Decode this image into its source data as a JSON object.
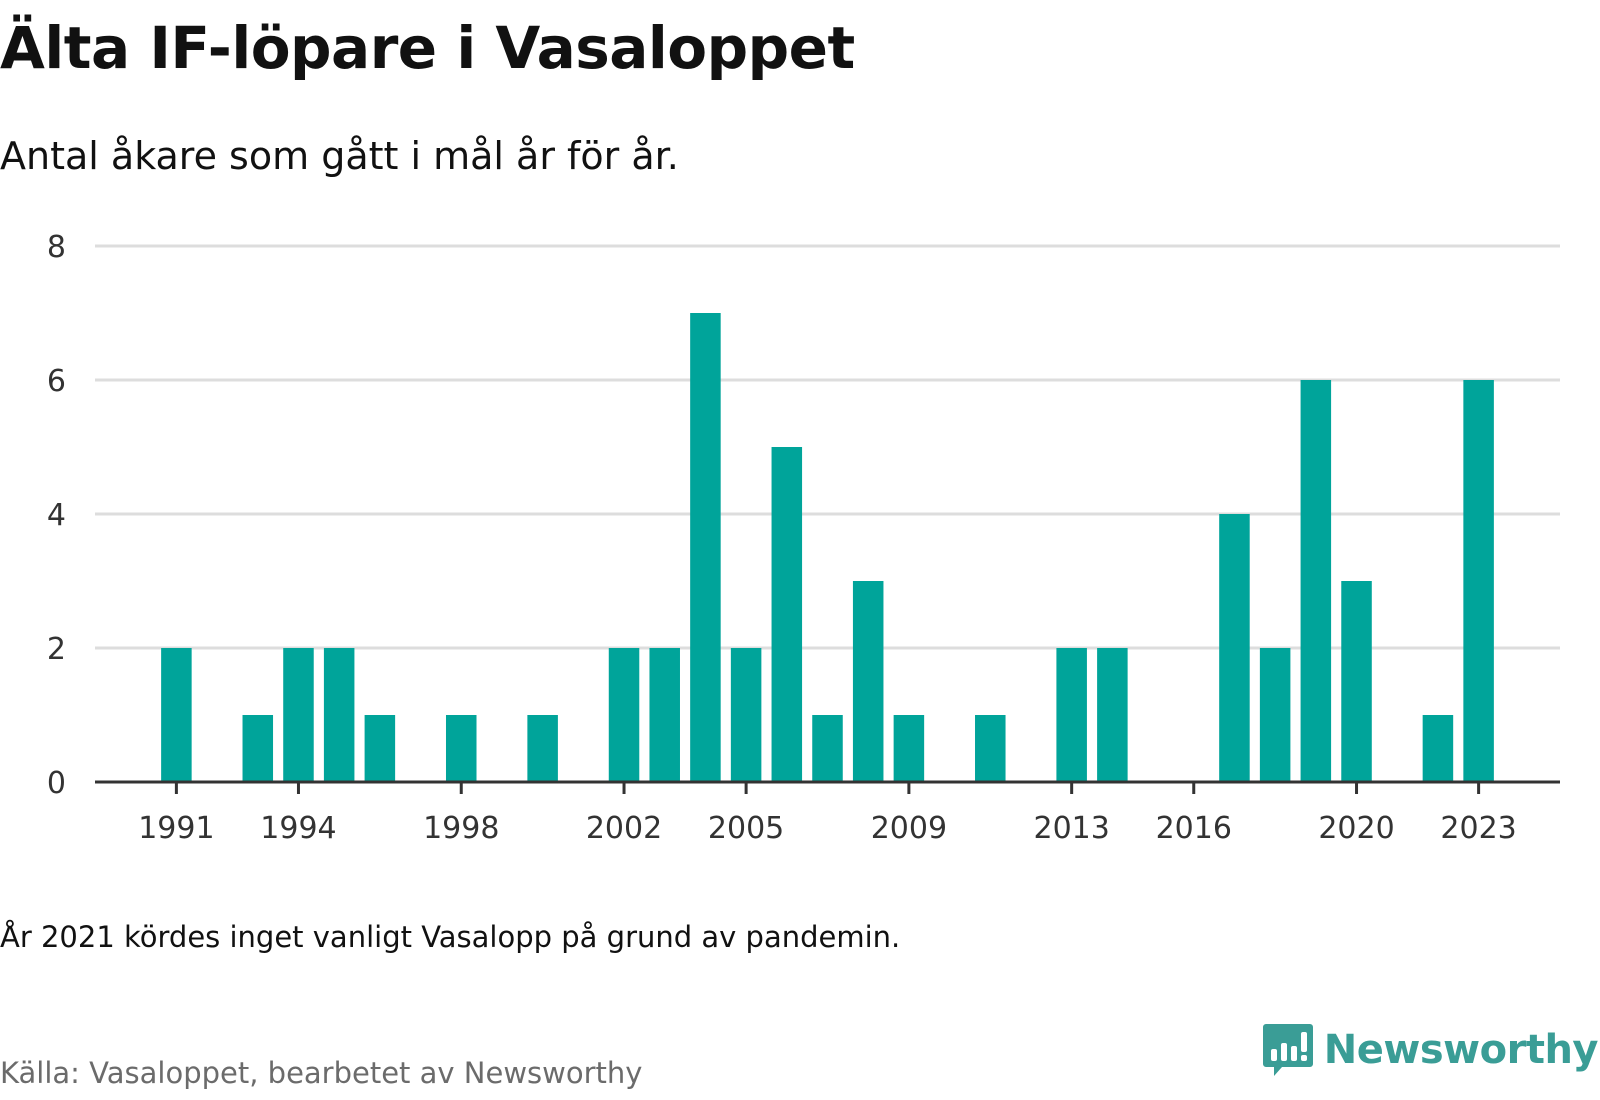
{
  "title": "Älta IF-löpare i Vasaloppet",
  "subtitle": "Antal åkare som gått i mål år för år.",
  "note": "År 2021 kördes inget vanligt Vasalopp på grund av pandemin.",
  "source": "Källa: Vasaloppet, bearbetet av Newsworthy",
  "brand": {
    "name": "Newsworthy",
    "icon": "newsworthy-logo-icon"
  },
  "colors": {
    "bar": "#00a49a",
    "grid": "#dddddd",
    "axis": "#333333",
    "brand": "#3a9d96"
  },
  "chart_data": {
    "type": "bar",
    "x": [
      1991,
      1993,
      1994,
      1995,
      1996,
      1998,
      2000,
      2002,
      2003,
      2004,
      2005,
      2006,
      2007,
      2008,
      2009,
      2011,
      2013,
      2014,
      2017,
      2018,
      2019,
      2020,
      2022,
      2023
    ],
    "values": [
      2,
      1,
      2,
      2,
      1,
      1,
      1,
      2,
      2,
      7,
      2,
      5,
      1,
      3,
      1,
      1,
      2,
      2,
      4,
      2,
      6,
      3,
      1,
      6
    ],
    "x_ticks": [
      "1991",
      "1994",
      "1998",
      "2002",
      "2005",
      "2009",
      "2013",
      "2016",
      "2020",
      "2023"
    ],
    "y_ticks": [
      "0",
      "2",
      "4",
      "6",
      "8"
    ],
    "xlim": [
      1989,
      2025
    ],
    "ylim": [
      0,
      8
    ],
    "grid": true
  }
}
